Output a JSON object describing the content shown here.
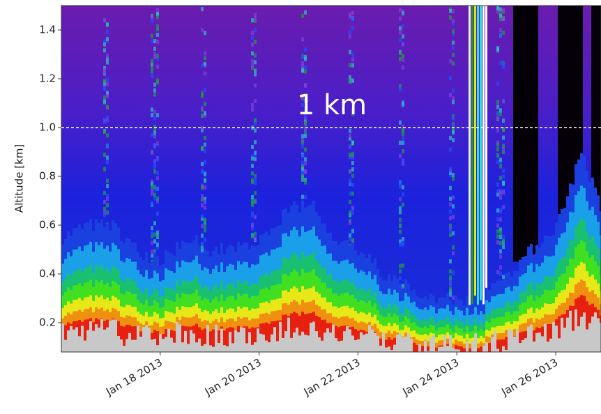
{
  "chart_data": {
    "type": "heatmap",
    "ylabel": "Altitude [km]",
    "ylim": [
      0.08,
      1.5
    ],
    "yticks": [
      0.2,
      0.4,
      0.6,
      0.8,
      {
        "value": 1.0,
        "label": "1.0"
      },
      1.2,
      1.4
    ],
    "xlim": [
      "2013-01-16T00:00",
      "2013-01-26T22:00"
    ],
    "xticks": [
      {
        "value": "2013-01-18T00:00",
        "label": "Jan 18 2013"
      },
      {
        "value": "2013-01-20T00:00",
        "label": "Jan 20 2013"
      },
      {
        "value": "2013-01-22T00:00",
        "label": "Jan 22 2013"
      },
      {
        "value": "2013-01-24T00:00",
        "label": "Jan 24 2013"
      },
      {
        "value": "2013-01-26T00:00",
        "label": "Jan 26 2013"
      }
    ],
    "annotation": {
      "text": "1 km",
      "y": 1.0
    }
  }
}
